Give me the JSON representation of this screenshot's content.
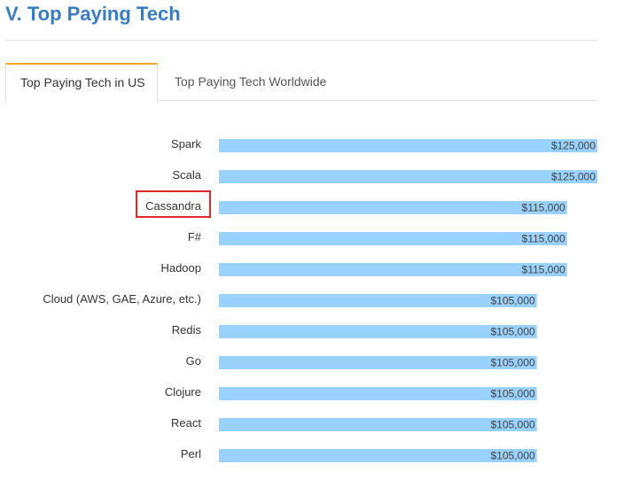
{
  "header": {
    "title": "V. Top Paying Tech"
  },
  "tabs": [
    {
      "label": "Top Paying Tech in US",
      "active": true
    },
    {
      "label": "Top Paying Tech Worldwide",
      "active": false
    }
  ],
  "colors": {
    "bar": "#99d1ff",
    "title": "#3a7cc1",
    "active_tab_accent": "#f5a623",
    "highlight": "#e0282b"
  },
  "highlighted_category": "Cassandra",
  "chart_data": {
    "type": "bar",
    "orientation": "horizontal",
    "categories": [
      "Spark",
      "Scala",
      "Cassandra",
      "F#",
      "Hadoop",
      "Cloud (AWS, GAE, Azure, etc.)",
      "Redis",
      "Go",
      "Clojure",
      "React",
      "Perl"
    ],
    "values": [
      125000,
      125000,
      115000,
      115000,
      115000,
      105000,
      105000,
      105000,
      105000,
      105000,
      105000
    ],
    "value_labels": [
      "$125,000",
      "$125,000",
      "$115,000",
      "$115,000",
      "$115,000",
      "$105,000",
      "$105,000",
      "$105,000",
      "$105,000",
      "$105,000",
      "$105,000"
    ],
    "title": "",
    "xlabel": "",
    "ylabel": "",
    "xlim": [
      0,
      125000
    ],
    "grid": false,
    "legend": "none"
  }
}
